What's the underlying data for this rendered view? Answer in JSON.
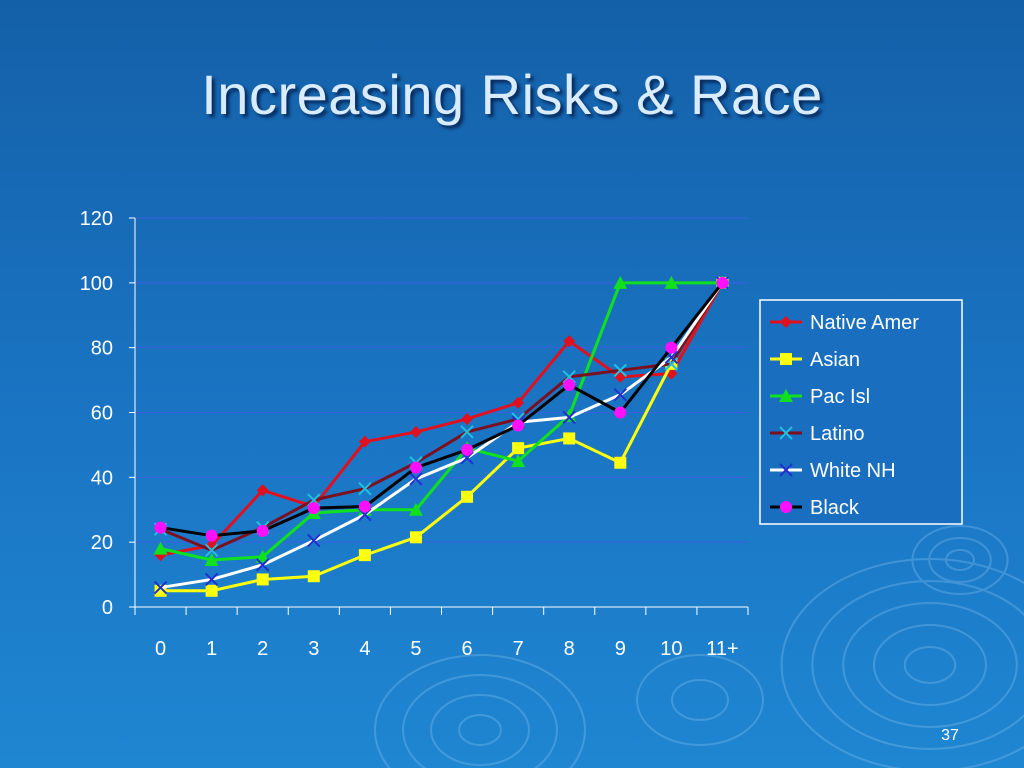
{
  "slide": {
    "title": "Increasing Risks & Race",
    "page_number": "37"
  },
  "chart_data": {
    "type": "line",
    "categories": [
      "0",
      "1",
      "2",
      "3",
      "4",
      "5",
      "6",
      "7",
      "8",
      "9",
      "10",
      "11+"
    ],
    "ylim": [
      0,
      120
    ],
    "yticks": [
      0,
      20,
      40,
      60,
      80,
      100,
      120
    ],
    "grid": true,
    "legend_position": "right",
    "series": [
      {
        "name": "Native Amer",
        "color": "#e0101e",
        "marker": "diamond",
        "values": [
          16,
          19,
          36,
          31,
          51,
          54,
          58,
          63,
          82,
          71,
          72,
          100
        ]
      },
      {
        "name": "Asian",
        "color": "#ffff10",
        "marker": "square",
        "values": [
          5,
          5,
          8.5,
          9.5,
          16,
          21.5,
          34,
          49,
          52,
          44.5,
          75,
          100
        ]
      },
      {
        "name": "Pac Isl",
        "color": "#10e020",
        "marker": "triangle",
        "values": [
          18,
          14.5,
          15.5,
          29,
          30,
          30,
          49,
          45,
          59,
          100,
          100,
          100
        ]
      },
      {
        "name": "Latino",
        "color": "#7a1020",
        "marker": "x",
        "values": [
          24,
          17.5,
          24.5,
          33,
          36.5,
          44.5,
          54,
          58,
          71,
          73,
          75,
          100
        ]
      },
      {
        "name": "White NH",
        "color": "#ffffff",
        "marker": "x",
        "values": [
          6,
          8.5,
          13,
          20.5,
          28.5,
          39.5,
          46,
          57,
          58.5,
          65.5,
          77,
          100
        ]
      },
      {
        "name": "Black",
        "color": "#000000",
        "marker": "circle",
        "marker_color": "#ff10ff",
        "values": [
          24.5,
          22,
          23.5,
          30.5,
          31,
          43,
          48.5,
          56,
          68.5,
          60,
          80,
          100
        ]
      }
    ]
  }
}
